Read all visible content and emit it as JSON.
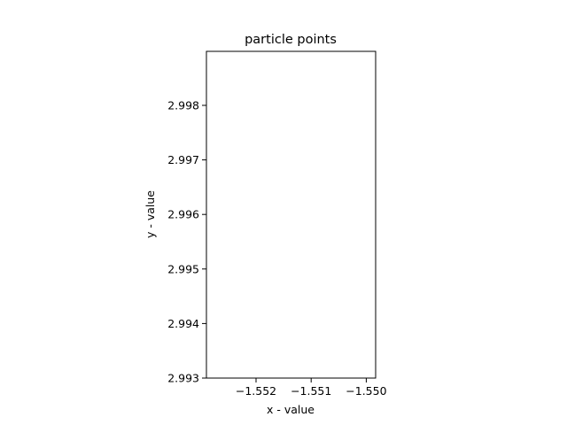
{
  "chart_data": {
    "type": "scatter",
    "title": "particle points",
    "xlabel": "x - value",
    "ylabel": "y - value",
    "xlim": [
      -1.5529,
      -1.54983
    ],
    "ylim": [
      2.993,
      2.99899
    ],
    "x_ticks": [
      {
        "value": -1.552,
        "label": "−1.552"
      },
      {
        "value": -1.551,
        "label": "−1.551"
      },
      {
        "value": -1.55,
        "label": "−1.550"
      }
    ],
    "y_ticks": [
      {
        "value": 2.993,
        "label": "2.993"
      },
      {
        "value": 2.994,
        "label": "2.994"
      },
      {
        "value": 2.995,
        "label": "2.995"
      },
      {
        "value": 2.996,
        "label": "2.996"
      },
      {
        "value": 2.997,
        "label": "2.997"
      },
      {
        "value": 2.998,
        "label": "2.998"
      }
    ],
    "series": [
      {
        "x": [],
        "y": []
      }
    ],
    "grid": false,
    "legend": "none"
  }
}
